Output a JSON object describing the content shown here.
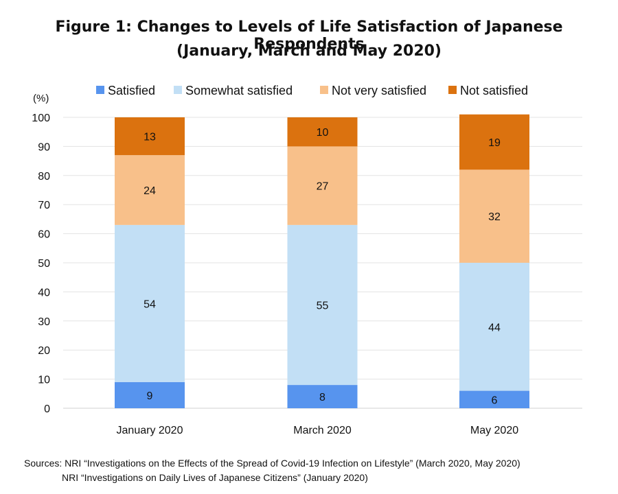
{
  "chart_data": {
    "type": "bar",
    "stacked": true,
    "title": "Figure 1: Changes to Levels of Life Satisfaction of Japanese Respondents",
    "subtitle": "(January, March and May 2020)",
    "unit_label": "(%)",
    "categories": [
      "January 2020",
      "March 2020",
      "May 2020"
    ],
    "series": [
      {
        "name": "Satisfied",
        "color": "#5794ee",
        "values": [
          9,
          8,
          6
        ]
      },
      {
        "name": "Somewhat satisfied",
        "color": "#c2dff5",
        "values": [
          54,
          55,
          44
        ]
      },
      {
        "name": "Not very satisfied",
        "color": "#f8c08a",
        "values": [
          24,
          27,
          32
        ]
      },
      {
        "name": "Not satisfied",
        "color": "#db720f",
        "values": [
          13,
          10,
          19
        ]
      }
    ],
    "ylim": [
      0,
      100
    ],
    "yticks": [
      0,
      10,
      20,
      30,
      40,
      50,
      60,
      70,
      80,
      90,
      100
    ],
    "grid": true,
    "legend_position": "top"
  },
  "sources": {
    "label": "Sources:",
    "line1": "NRI “Investigations on the Effects of the Spread of Covid-19 Infection on Lifestyle” (March 2020, May 2020)",
    "line2": "NRI “Investigations on Daily Lives of Japanese Citizens” (January 2020)"
  }
}
